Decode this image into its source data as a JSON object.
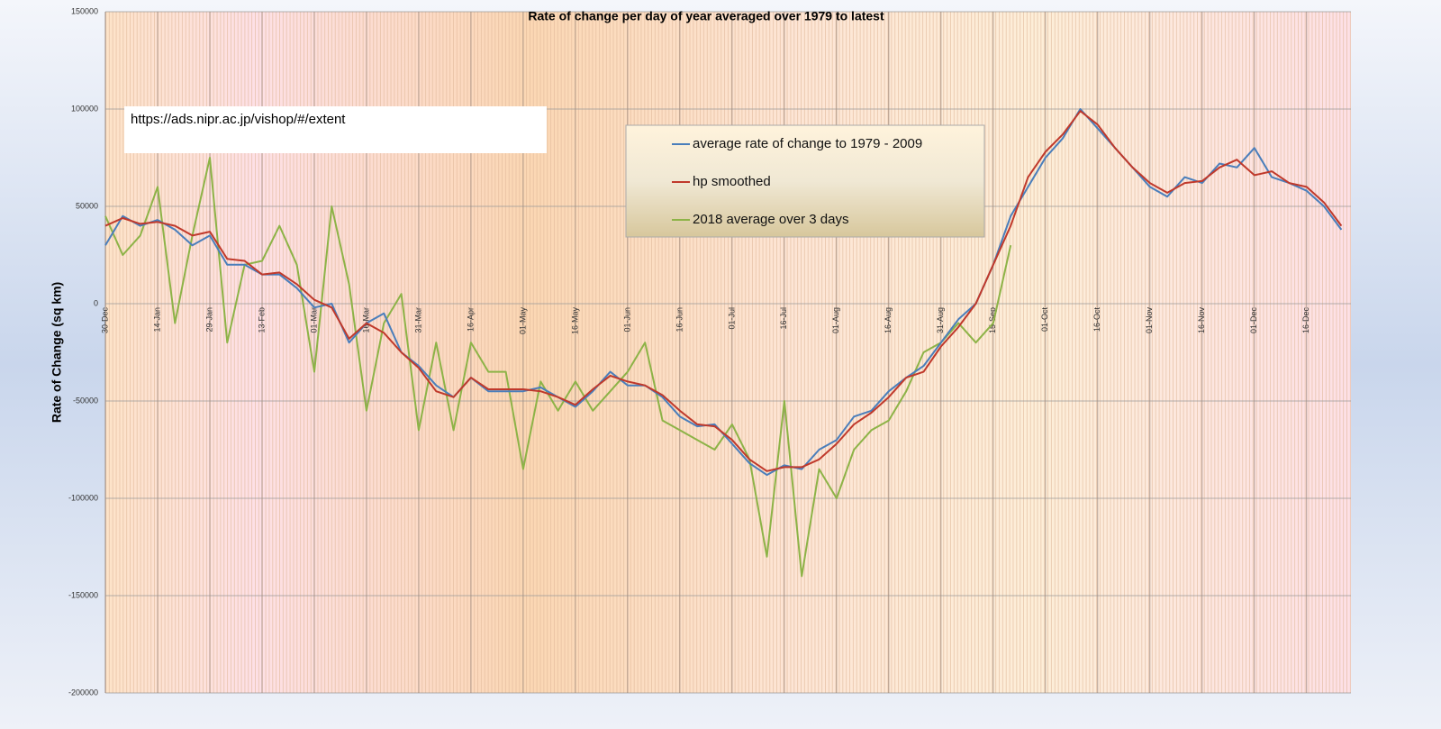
{
  "chart_data": {
    "type": "line",
    "title": "Rate of change per day of year averaged over 1979 to latest",
    "y_label": "Rate of Change (sq km)",
    "annotation": "https://ads.nipr.ac.jp/vishop/#/extent",
    "categories": [
      "30-Dec",
      null,
      null,
      "14-Jan",
      null,
      null,
      "29-Jan",
      null,
      null,
      "13-Feb",
      null,
      null,
      "01-Mar",
      null,
      null,
      "16-Mar",
      null,
      null,
      "31-Mar",
      null,
      null,
      "16-Apr",
      null,
      null,
      "01-May",
      null,
      null,
      "16-May",
      null,
      null,
      "01-Jun",
      null,
      null,
      "16-Jun",
      null,
      null,
      "01-Jul",
      null,
      null,
      "16-Jul",
      null,
      null,
      "01-Aug",
      null,
      null,
      "16-Aug",
      null,
      null,
      "31-Aug",
      null,
      null,
      "15-Sep",
      null,
      null,
      "01-Oct",
      null,
      null,
      "16-Oct",
      null,
      null,
      "01-Nov",
      null,
      null,
      "16-Nov",
      null,
      null,
      "01-Dec",
      null,
      null,
      "16-Dec",
      null,
      null
    ],
    "series": [
      {
        "name": "average rate of change to 1979 - 2009",
        "color": "#4a7ebb",
        "values": [
          30000,
          45000,
          40000,
          43000,
          38000,
          30000,
          35000,
          20000,
          20000,
          15000,
          15000,
          8000,
          -2000,
          0,
          -20000,
          -10000,
          -5000,
          -25000,
          -32000,
          -42000,
          -48000,
          -38000,
          -45000,
          -45000,
          -45000,
          -43000,
          -48000,
          -53000,
          -45000,
          -35000,
          -42000,
          -42000,
          -48000,
          -58000,
          -63000,
          -62000,
          -72000,
          -82000,
          -88000,
          -83000,
          -85000,
          -75000,
          -70000,
          -58000,
          -55000,
          -45000,
          -38000,
          -32000,
          -20000,
          -8000,
          0,
          20000,
          45000,
          60000,
          75000,
          85000,
          100000,
          90000,
          80000,
          70000,
          60000,
          55000,
          65000,
          62000,
          72000,
          70000,
          80000,
          65000,
          62000,
          58000,
          50000,
          38000
        ]
      },
      {
        "name": "hp smoothed",
        "color": "#c0392b",
        "values": [
          40000,
          44000,
          41000,
          42000,
          40000,
          35000,
          37000,
          23000,
          22000,
          15000,
          16000,
          10000,
          2000,
          -2000,
          -18000,
          -10000,
          -15000,
          -25000,
          -33000,
          -45000,
          -48000,
          -38000,
          -44000,
          -44000,
          -44000,
          -45000,
          -48000,
          -52000,
          -44000,
          -37000,
          -40000,
          -42000,
          -47000,
          -55000,
          -62000,
          -63000,
          -70000,
          -80000,
          -86000,
          -84000,
          -84000,
          -80000,
          -72000,
          -62000,
          -56000,
          -48000,
          -38000,
          -35000,
          -22000,
          -12000,
          0,
          20000,
          40000,
          65000,
          78000,
          87000,
          99000,
          92000,
          80000,
          70000,
          62000,
          57000,
          62000,
          63000,
          70000,
          74000,
          66000,
          68000,
          62000,
          60000,
          52000,
          40000
        ]
      },
      {
        "name": "2018 average over 3 days",
        "color": "#8db347",
        "values": [
          45000,
          25000,
          35000,
          60000,
          -10000,
          35000,
          75000,
          -20000,
          20000,
          22000,
          40000,
          20000,
          -35000,
          50000,
          10000,
          -55000,
          -10000,
          5000,
          -65000,
          -20000,
          -65000,
          -20000,
          -35000,
          -35000,
          -85000,
          -40000,
          -55000,
          -40000,
          -55000,
          -45000,
          -35000,
          -20000,
          -60000,
          -65000,
          -70000,
          -75000,
          -62000,
          -80000,
          -130000,
          -50000,
          -140000,
          -85000,
          -100000,
          -75000,
          -65000,
          -60000,
          -45000,
          -25000,
          -20000,
          -10000,
          -20000,
          -10000,
          30000,
          null,
          null,
          null,
          null,
          null,
          null,
          null,
          null,
          null,
          null,
          null,
          null,
          null,
          null,
          null,
          null,
          null,
          null,
          null
        ]
      }
    ],
    "ylim": [
      -200000,
      150000
    ],
    "yticks": [
      -200000,
      -150000,
      -100000,
      -50000,
      0,
      50000,
      100000,
      150000
    ],
    "grid": true
  }
}
